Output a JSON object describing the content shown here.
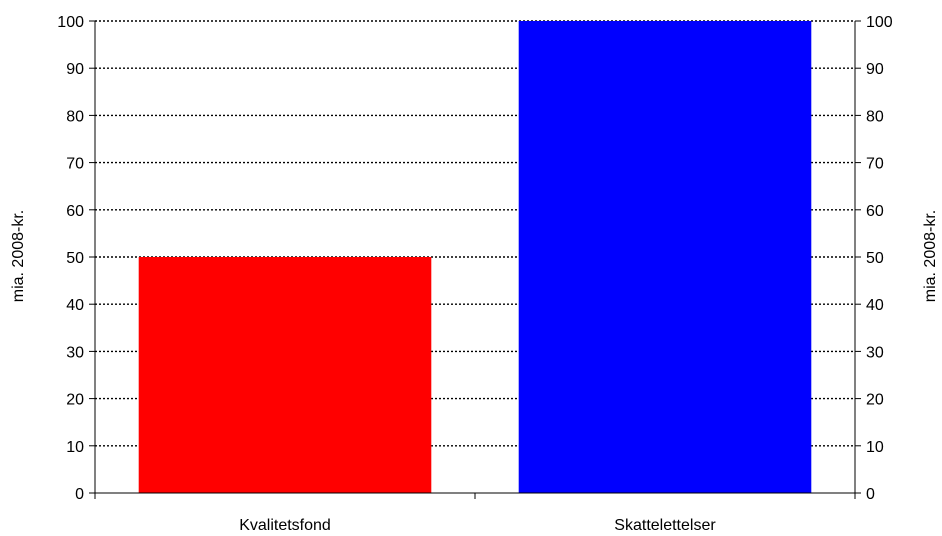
{
  "chart_data": {
    "type": "bar",
    "categories": [
      "Kvalitetsfond",
      "Skattelettelser"
    ],
    "values": [
      50,
      100
    ],
    "colors": [
      "#ff0000",
      "#0000ff"
    ],
    "ylabel_left": "mia. 2008-kr.",
    "ylabel_right": "mia. 2008-kr.",
    "ylim": [
      0,
      100
    ],
    "yticks": [
      0,
      10,
      20,
      30,
      40,
      50,
      60,
      70,
      80,
      90,
      100
    ],
    "grid": "dotted horizontal",
    "secondary_axis": true
  }
}
